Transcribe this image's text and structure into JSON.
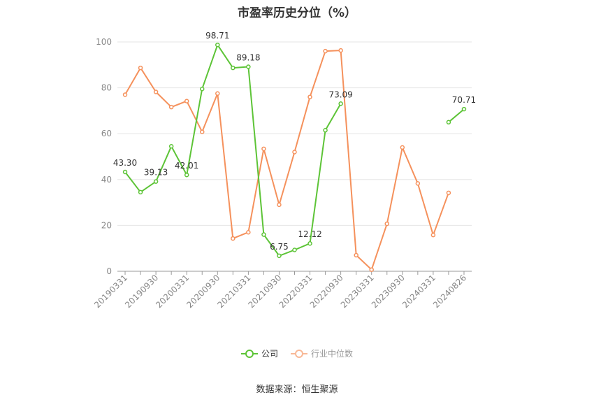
{
  "chart_data": {
    "type": "line",
    "title": "市盈率历史分位（%）",
    "source": "数据来源：恒生聚源",
    "ylim": [
      0,
      100
    ],
    "y_ticks": [
      0,
      20,
      40,
      60,
      80,
      100
    ],
    "x": [
      "20190331",
      "20190630",
      "20190930",
      "20191231",
      "20200331",
      "20200630",
      "20200930",
      "20201231",
      "20210331",
      "20210630",
      "20210930",
      "20211231",
      "20220331",
      "20220630",
      "20220930",
      "20221231",
      "20230331",
      "20230630",
      "20230930",
      "20231231",
      "20240331",
      "20240630",
      "20240826"
    ],
    "x_tick_labels": [
      "20190331",
      "",
      "20190930",
      "",
      "20200331",
      "",
      "20200930",
      "",
      "20210331",
      "",
      "20210930",
      "",
      "20220331",
      "",
      "20220930",
      "",
      "20230331",
      "",
      "20230930",
      "",
      "20240331",
      "",
      "20240826"
    ],
    "series": [
      {
        "name": "公司",
        "color": "#5dc437",
        "values": [
          43.3,
          34.5,
          39.13,
          54.5,
          42.01,
          79.5,
          98.71,
          88.7,
          89.18,
          16.0,
          6.75,
          9.3,
          12.12,
          61.5,
          73.09,
          null,
          null,
          null,
          null,
          null,
          null,
          65.0,
          70.71
        ],
        "labels": [
          "43.30",
          "",
          "39.13",
          "",
          "42.01",
          "",
          "98.71",
          "",
          "89.18",
          "",
          "6.75",
          "",
          "12.12",
          "",
          "73.09",
          "",
          "",
          "",
          "",
          "",
          "",
          "",
          "70.71"
        ]
      },
      {
        "name": "行业中位数",
        "color": "#f5915c",
        "values": [
          77.0,
          88.7,
          78.2,
          71.6,
          74.2,
          60.8,
          77.5,
          14.3,
          17.0,
          53.4,
          29.0,
          52.0,
          76.0,
          96.0,
          96.3,
          7.0,
          0.7,
          20.7,
          54.0,
          38.3,
          15.8,
          34.2,
          null
        ],
        "labels": []
      }
    ],
    "grid": "horizontal",
    "legend_position": "bottom-center"
  }
}
